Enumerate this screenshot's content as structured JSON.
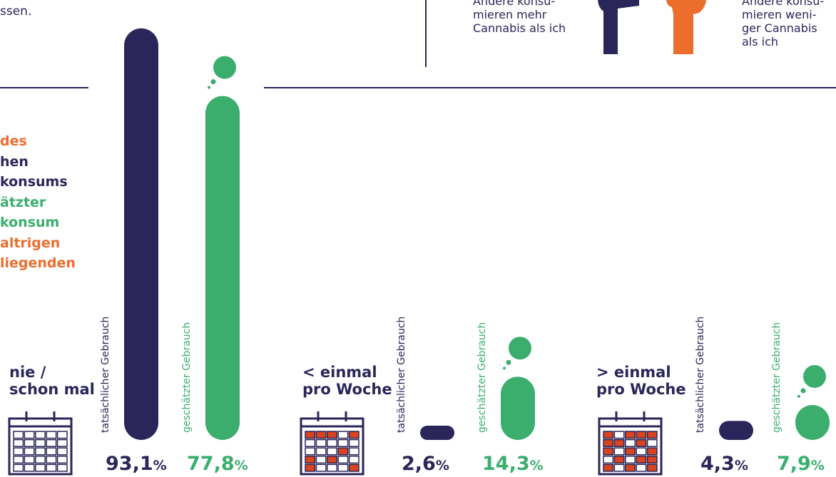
{
  "intro": {
    "text_fragment": "ssen."
  },
  "legend": {
    "more": [
      "Andere konsu-",
      "mieren mehr",
      "Cannabis als ich"
    ],
    "less": [
      "Andere konsu-",
      "mieren weni-",
      "ger Cannabis",
      "als ich"
    ]
  },
  "heading_lines": [
    {
      "text": "des",
      "color": "#ed6d2c"
    },
    {
      "text": "hen",
      "color": "#2b2659"
    },
    {
      "text": "konsums",
      "color": "#2b2659"
    },
    {
      "text": "ätzter",
      "color": "#3bae6e"
    },
    {
      "text": "konsum",
      "color": "#3bae6e"
    },
    {
      "text": "altrigen",
      "color": "#ed6d2c"
    },
    {
      "text": "liegenden",
      "color": "#ed6d2c"
    }
  ],
  "colors": {
    "navy": "#2b2659",
    "green": "#3bae6e",
    "orange": "#ed6d2c",
    "red": "#d9431e"
  },
  "chart_data": {
    "type": "bar",
    "categories": [
      "nie / schon mal",
      "< einmal pro Woche",
      "> einmal pro Woche"
    ],
    "category_lines": [
      [
        "nie /",
        "schon mal"
      ],
      [
        "< einmal",
        "pro Woche"
      ],
      [
        "> einmal",
        "pro Woche"
      ]
    ],
    "series": [
      {
        "name": "tatsächlicher Gebrauch",
        "values": [
          93.1,
          2.6,
          4.3
        ],
        "labels": [
          "93,1",
          "2,6",
          "4,3"
        ]
      },
      {
        "name": "geschätzter Gebrauch",
        "values": [
          77.8,
          14.3,
          7.9
        ],
        "labels": [
          "77,8",
          "14,3",
          "7,9"
        ]
      }
    ],
    "unit": "%",
    "ylim": [
      0,
      100
    ]
  }
}
